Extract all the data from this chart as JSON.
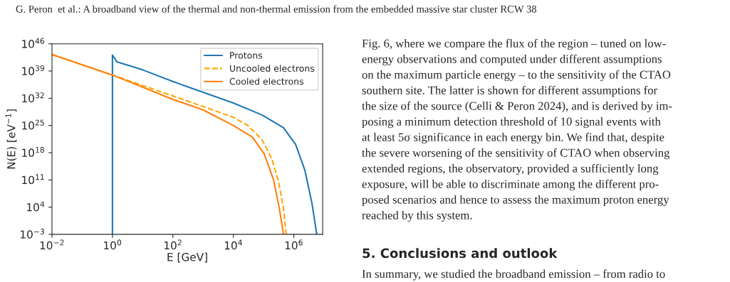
{
  "chart_data": {
    "type": "line",
    "xlabel": "E [GeV]",
    "ylabel": "N(E) [eV$^{−1}$]",
    "log": "xy",
    "xlim": [
      0.01,
      9000000.0
    ],
    "ylim": [
      0.001,
      1e+46
    ],
    "xticks": [
      {
        "value": 0.01,
        "label": "10$^{−2}$"
      },
      {
        "value": 1,
        "label": "10$^{0}$"
      },
      {
        "value": 100,
        "label": "10$^{2}$"
      },
      {
        "value": 10000,
        "label": "10$^{4}$"
      },
      {
        "value": 1000000,
        "label": "10$^{6}$"
      }
    ],
    "yticks": [
      {
        "value": 0.001,
        "label": "10$^{−3}$"
      },
      {
        "value": 10000.0,
        "label": "10$^{4}$"
      },
      {
        "value": 100000000000.0,
        "label": "10$^{11}$"
      },
      {
        "value": 1e+18,
        "label": "10$^{18}$"
      },
      {
        "value": 1e+25,
        "label": "10$^{25}$"
      },
      {
        "value": 1e+32,
        "label": "10$^{32}$"
      },
      {
        "value": 1e+39,
        "label": "10$^{39}$"
      },
      {
        "value": 1e+46,
        "label": "10$^{46}$"
      }
    ],
    "legend": "top right",
    "grid": false,
    "series": [
      {
        "name": "Protons",
        "color": "#1f77b4",
        "line_style": "solid",
        "x": [
          1,
          1,
          1.4,
          10,
          100,
          10000,
          89000,
          457000,
          1150000,
          2340000,
          4000000,
          5750000
        ],
        "values": [
          0.001,
          1.3e+43,
          2.5e+41,
          2e+39,
          2e+36,
          6e+30,
          5e+27,
          2.5e+24,
          1.3e+20,
          25000000000000.0,
          80000.0,
          0.001
        ]
      },
      {
        "name": "Uncooled electrons",
        "color": "#ffa500",
        "line_style": "dashed",
        "x": [
          0.01,
          1,
          100,
          10000,
          30000,
          89000,
          186000,
          316000,
          457000,
          560000
        ],
        "values": [
          1.8e+43,
          9.3e+37,
          4e+32,
          1.3e+27,
          1e+25,
          2.2e+21,
          3e+16,
          25000000000.0,
          5000.0,
          0.001
        ]
      },
      {
        "name": "Cooled electrons",
        "color": "#ff7f0e",
        "line_style": "solid",
        "x": [
          0.01,
          1,
          15,
          100,
          1000,
          10000,
          43000,
          105000,
          214000,
          331000,
          457000
        ],
        "values": [
          1.8e+43,
          9.3e+37,
          2e+34,
          5e+31,
          1e+29,
          1e+25,
          1e+22,
          5e+17,
          100000000000.0,
          5000.0,
          0.001
        ]
      }
    ],
    "annotations": [
      "G. Peron  et al.: A broadband view of the thermal and non-thermal emission from the embedded massive star cluster RCW 38",
      "Fig. 6, where we compare the flux of the region – tuned on low-",
      "energy observations and computed under different assumptions",
      "on the maximum particle energy – to the sensitivity of the CTAO",
      "southern site. The latter is shown for different assumptions for",
      "the size of the source (Celli & Peron 2024), and is derived by im-",
      "posing a minimum detection threshold of 10 signal events with",
      "at least 5σ significance in each energy bin. We find that, despite",
      "the severe worsening of the sensitivity of CTAO when observing",
      "extended regions, the observatory, provided a sufficiently long",
      "exposure, will be able to discriminate among the different pro-",
      "posed scenarios and hence to assess the maximum proton energy",
      "reached by this system.",
      "5. Conclusions and outlook",
      "In summary, we studied the broadband emission – from radio to"
    ]
  }
}
